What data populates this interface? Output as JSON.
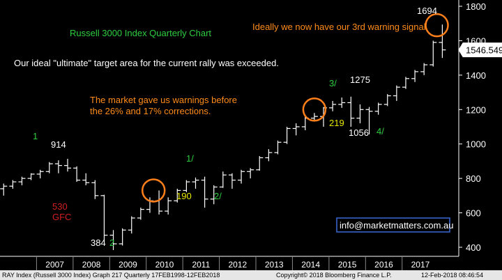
{
  "chart_data": {
    "type": "bar",
    "subtype": "ohlc",
    "title": "Russell 3000 Index Quarterly Chart",
    "x_tick_labels": [
      "2007",
      "2008",
      "2009",
      "2010",
      "2011",
      "2012",
      "2013",
      "2014",
      "2015",
      "2016",
      "2017"
    ],
    "y_ticks": [
      400,
      600,
      800,
      1000,
      1200,
      1400,
      1600,
      1800
    ],
    "ylim": [
      340,
      1830
    ],
    "grid": false,
    "last_price": "1546.549",
    "bars": [
      {
        "t": 2006.1,
        "o": 740,
        "h": 770,
        "l": 700,
        "c": 755
      },
      {
        "t": 2006.35,
        "o": 755,
        "h": 790,
        "l": 740,
        "c": 780
      },
      {
        "t": 2006.6,
        "o": 780,
        "h": 810,
        "l": 760,
        "c": 800
      },
      {
        "t": 2006.85,
        "o": 800,
        "h": 830,
        "l": 790,
        "c": 825
      },
      {
        "t": 2007.1,
        "o": 825,
        "h": 850,
        "l": 800,
        "c": 840
      },
      {
        "t": 2007.35,
        "o": 840,
        "h": 895,
        "l": 830,
        "c": 885
      },
      {
        "t": 2007.6,
        "o": 885,
        "h": 905,
        "l": 830,
        "c": 875
      },
      {
        "t": 2007.85,
        "o": 875,
        "h": 914,
        "l": 840,
        "c": 860
      },
      {
        "t": 2008.1,
        "o": 860,
        "h": 870,
        "l": 780,
        "c": 790
      },
      {
        "t": 2008.35,
        "o": 790,
        "h": 830,
        "l": 760,
        "c": 775
      },
      {
        "t": 2008.6,
        "o": 775,
        "h": 790,
        "l": 680,
        "c": 700
      },
      {
        "t": 2008.85,
        "o": 700,
        "h": 705,
        "l": 430,
        "c": 470
      },
      {
        "t": 2009.1,
        "o": 470,
        "h": 500,
        "l": 384,
        "c": 420
      },
      {
        "t": 2009.35,
        "o": 420,
        "h": 510,
        "l": 410,
        "c": 500
      },
      {
        "t": 2009.6,
        "o": 500,
        "h": 580,
        "l": 480,
        "c": 570
      },
      {
        "t": 2009.85,
        "o": 570,
        "h": 630,
        "l": 560,
        "c": 620
      },
      {
        "t": 2010.1,
        "o": 620,
        "h": 690,
        "l": 600,
        "c": 670
      },
      {
        "t": 2010.35,
        "o": 670,
        "h": 730,
        "l": 590,
        "c": 610
      },
      {
        "t": 2010.6,
        "o": 610,
        "h": 690,
        "l": 590,
        "c": 670
      },
      {
        "t": 2010.85,
        "o": 670,
        "h": 740,
        "l": 660,
        "c": 730
      },
      {
        "t": 2011.1,
        "o": 730,
        "h": 790,
        "l": 720,
        "c": 780
      },
      {
        "t": 2011.35,
        "o": 780,
        "h": 805,
        "l": 740,
        "c": 790
      },
      {
        "t": 2011.6,
        "o": 790,
        "h": 810,
        "l": 630,
        "c": 680
      },
      {
        "t": 2011.85,
        "o": 680,
        "h": 760,
        "l": 650,
        "c": 750
      },
      {
        "t": 2012.1,
        "o": 750,
        "h": 840,
        "l": 745,
        "c": 820
      },
      {
        "t": 2012.35,
        "o": 820,
        "h": 830,
        "l": 740,
        "c": 790
      },
      {
        "t": 2012.6,
        "o": 790,
        "h": 850,
        "l": 770,
        "c": 840
      },
      {
        "t": 2012.85,
        "o": 840,
        "h": 860,
        "l": 800,
        "c": 850
      },
      {
        "t": 2013.1,
        "o": 850,
        "h": 930,
        "l": 845,
        "c": 920
      },
      {
        "t": 2013.35,
        "o": 920,
        "h": 970,
        "l": 900,
        "c": 950
      },
      {
        "t": 2013.6,
        "o": 950,
        "h": 1020,
        "l": 940,
        "c": 1010
      },
      {
        "t": 2013.85,
        "o": 1010,
        "h": 1100,
        "l": 1000,
        "c": 1090
      },
      {
        "t": 2014.1,
        "o": 1090,
        "h": 1120,
        "l": 1050,
        "c": 1100
      },
      {
        "t": 2014.35,
        "o": 1100,
        "h": 1160,
        "l": 1080,
        "c": 1150
      },
      {
        "t": 2014.6,
        "o": 1150,
        "h": 1180,
        "l": 1130,
        "c": 1160
      },
      {
        "t": 2014.85,
        "o": 1160,
        "h": 1215,
        "l": 1100,
        "c": 1210
      },
      {
        "t": 2015.1,
        "o": 1210,
        "h": 1250,
        "l": 1190,
        "c": 1230
      },
      {
        "t": 2015.35,
        "o": 1230,
        "h": 1270,
        "l": 1210,
        "c": 1240
      },
      {
        "t": 2015.6,
        "o": 1240,
        "h": 1275,
        "l": 1100,
        "c": 1150
      },
      {
        "t": 2015.85,
        "o": 1150,
        "h": 1230,
        "l": 1120,
        "c": 1200
      },
      {
        "t": 2016.1,
        "o": 1200,
        "h": 1215,
        "l": 1056,
        "c": 1190
      },
      {
        "t": 2016.35,
        "o": 1190,
        "h": 1240,
        "l": 1170,
        "c": 1230
      },
      {
        "t": 2016.6,
        "o": 1230,
        "h": 1290,
        "l": 1220,
        "c": 1280
      },
      {
        "t": 2016.85,
        "o": 1280,
        "h": 1340,
        "l": 1250,
        "c": 1330
      },
      {
        "t": 2017.1,
        "o": 1330,
        "h": 1390,
        "l": 1320,
        "c": 1380
      },
      {
        "t": 2017.35,
        "o": 1380,
        "h": 1430,
        "l": 1360,
        "c": 1420
      },
      {
        "t": 2017.6,
        "o": 1420,
        "h": 1470,
        "l": 1400,
        "c": 1460
      },
      {
        "t": 2017.85,
        "o": 1460,
        "h": 1600,
        "l": 1450,
        "c": 1590
      },
      {
        "t": 2018.1,
        "o": 1590,
        "h": 1694,
        "l": 1500,
        "c": 1546.549
      }
    ],
    "annotations": [
      {
        "text": "Russell 3000 Index Quarterly Chart",
        "color": "#2ecc40"
      },
      {
        "text": "Our ideal \"ultimate\" target area for the current rally was exceeded.",
        "color": "#ffffff"
      },
      {
        "text": "The market gave us warnings before",
        "color": "#ff8c1a"
      },
      {
        "text": "the 26% and 17% corrections.",
        "color": "#ff8c1a"
      },
      {
        "text": "Ideally we now have our 3rd warning signal.",
        "color": "#ff8c1a"
      },
      {
        "text": "1694",
        "color": "#ffffff"
      },
      {
        "text": "914",
        "color": "#ffffff"
      },
      {
        "text": "1",
        "color": "#2ecc40"
      },
      {
        "text": "530",
        "color": "#d21f1f"
      },
      {
        "text": "GFC",
        "color": "#d21f1f"
      },
      {
        "text": "384",
        "color": "#ffffff"
      },
      {
        "text": "2",
        "color": "#2ecc40"
      },
      {
        "text": "1/",
        "color": "#2ecc40"
      },
      {
        "text": "190",
        "color": "#e8e800"
      },
      {
        "text": "2/",
        "color": "#2ecc40"
      },
      {
        "text": "3/",
        "color": "#2ecc40"
      },
      {
        "text": "1275",
        "color": "#ffffff"
      },
      {
        "text": "219",
        "color": "#e8e800"
      },
      {
        "text": "1056",
        "color": "#ffffff"
      },
      {
        "text": "4/",
        "color": "#2ecc40"
      }
    ],
    "circles_at": [
      {
        "t": 2010.2,
        "v": 730
      },
      {
        "t": 2014.6,
        "v": 1200
      },
      {
        "t": 2017.95,
        "v": 1690
      }
    ],
    "contact": "info@marketmatters.com.au"
  },
  "footer": {
    "left": "RAY Index (Russell 3000 Index) Graph 217  Quarterly 17FEB1998-12FEB2018",
    "center": "Copyright© 2018 Bloomberg Finance L.P.",
    "right": "12-Feb-2018 08:46:54"
  },
  "colors": {
    "background": "#000000",
    "bars": "#ffffff",
    "circle": "#ff7f1a",
    "contact_border": "#3a6ad4",
    "last_price_box": "#ffffff"
  }
}
